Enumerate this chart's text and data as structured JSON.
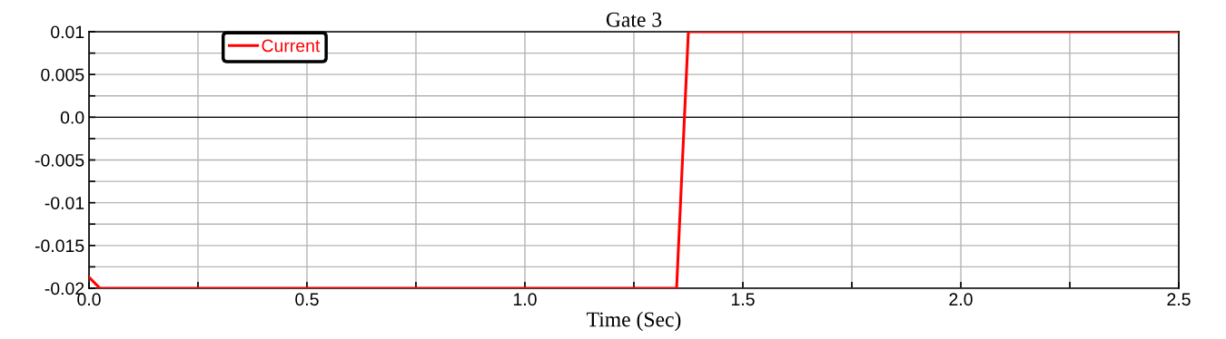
{
  "chart_data": {
    "type": "line",
    "title": "Gate 3",
    "xlabel": "Time (Sec)",
    "series": [
      {
        "name": "Current",
        "color": "#ff0000",
        "x": [
          0,
          0.025,
          1.348,
          1.375,
          2.5
        ],
        "values": [
          -0.0187,
          -0.02,
          -0.02,
          0.01,
          0.01
        ]
      }
    ],
    "xlim": [
      0,
      2.5
    ],
    "xticks": [
      {
        "value": 0,
        "label": "0.0"
      },
      {
        "value": 0.25,
        "label": null
      },
      {
        "value": 0.5,
        "label": "0.5"
      },
      {
        "value": 0.75,
        "label": null
      },
      {
        "value": 1.0,
        "label": "1.0"
      },
      {
        "value": 1.25,
        "label": null
      },
      {
        "value": 1.5,
        "label": "1.5"
      },
      {
        "value": 1.75,
        "label": null
      },
      {
        "value": 2.0,
        "label": "2.0"
      },
      {
        "value": 2.25,
        "label": null
      },
      {
        "value": 2.5,
        "label": "2.5"
      }
    ],
    "ylim": [
      -0.02,
      0.01
    ],
    "yticks": [
      -0.02,
      {
        "value": -0.0175,
        "label": null
      },
      -0.015,
      {
        "value": -0.0125,
        "label": null
      },
      -0.01,
      {
        "value": -0.0075,
        "label": null
      },
      -0.005,
      {
        "value": -0.0025,
        "label": null
      },
      {
        "value": 0,
        "label": "0.0"
      },
      {
        "value": 0.0025,
        "label": null
      },
      0.005,
      {
        "value": 0.0075,
        "label": null
      },
      0.01
    ],
    "ref_lines": [
      {
        "axis": "y",
        "value": 0,
        "color": "#000000"
      }
    ],
    "grid": true,
    "legend": "top left",
    "marker": "none",
    "line_style": "solid"
  }
}
